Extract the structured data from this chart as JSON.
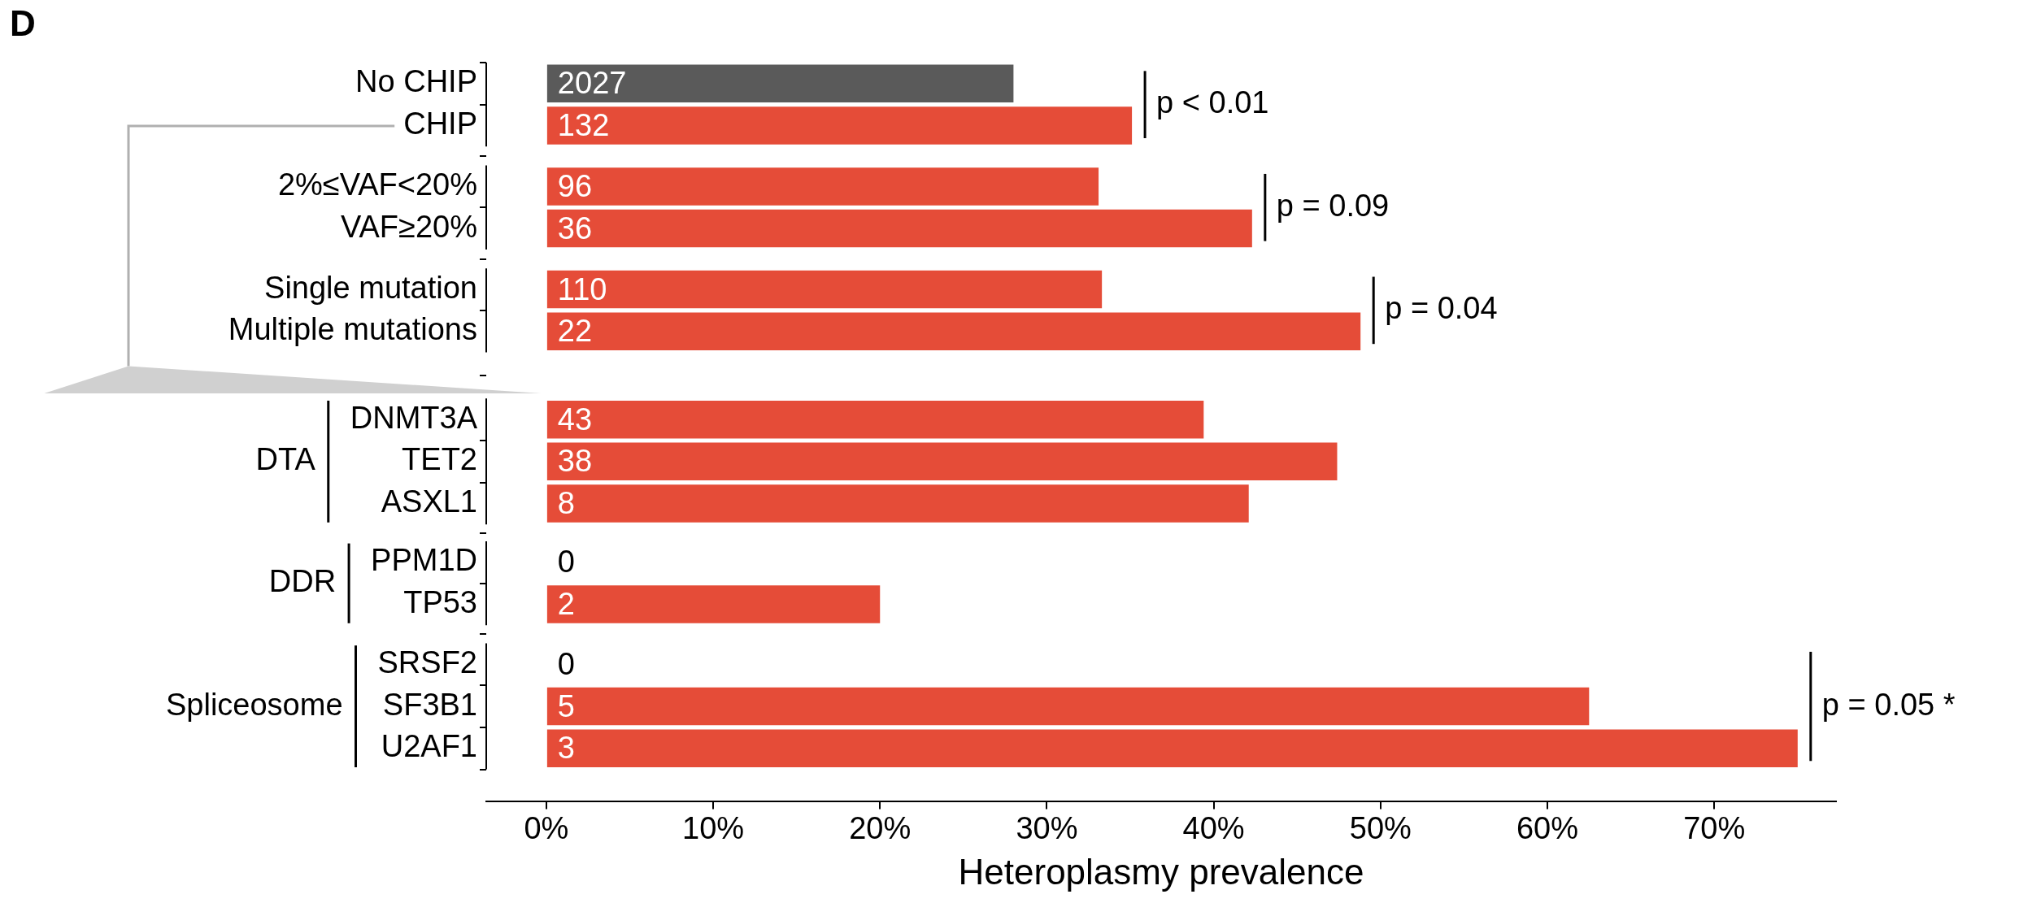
{
  "chart_data": {
    "type": "bar",
    "orientation": "horizontal",
    "title": "D",
    "xlabel": "Heteroplasmy prevalence",
    "categories": [
      "No CHIP",
      "CHIP",
      "2%≤VAF<20%",
      "VAF≥20%",
      "Single mutation",
      "Multiple mutations",
      "DNMT3A",
      "TET2",
      "ASXL1",
      "PPM1D",
      "TP53",
      "SRSF2",
      "SF3B1",
      "U2AF1"
    ],
    "values": [
      28,
      35.1,
      33.1,
      42.3,
      33.3,
      48.8,
      39.4,
      47.4,
      42.1,
      0,
      20,
      0,
      62.5,
      75
    ],
    "colors": [
      "#5a5a5a",
      "#e54c38",
      "#e54c38",
      "#e54c38",
      "#e54c38",
      "#e54c38",
      "#e54c38",
      "#e54c38",
      "#e54c38",
      "#e54c38",
      "#e54c38",
      "#e54c38",
      "#e54c38",
      "#e54c38"
    ],
    "xlim": [
      -3.6,
      77.3
    ],
    "xticks": [
      {
        "value": 0,
        "label": "0%"
      },
      {
        "value": 10,
        "label": "10%"
      },
      {
        "value": 20,
        "label": "20%"
      },
      {
        "value": 30,
        "label": "30%"
      },
      {
        "value": 40,
        "label": "40%"
      },
      {
        "value": 50,
        "label": "50%"
      },
      {
        "value": 60,
        "label": "60%"
      },
      {
        "value": 70,
        "label": "70%"
      }
    ],
    "grid": false,
    "legend": false,
    "annotations": [
      "p < 0.01",
      "p = 0.09",
      "p = 0.04",
      "p = 0.05 *",
      "DTA",
      "DDR",
      "Spliceosome",
      "2027",
      "132",
      "96",
      "36",
      "110",
      "22",
      "43",
      "38",
      "8",
      "0",
      "2",
      "0",
      "5",
      "3"
    ]
  }
}
